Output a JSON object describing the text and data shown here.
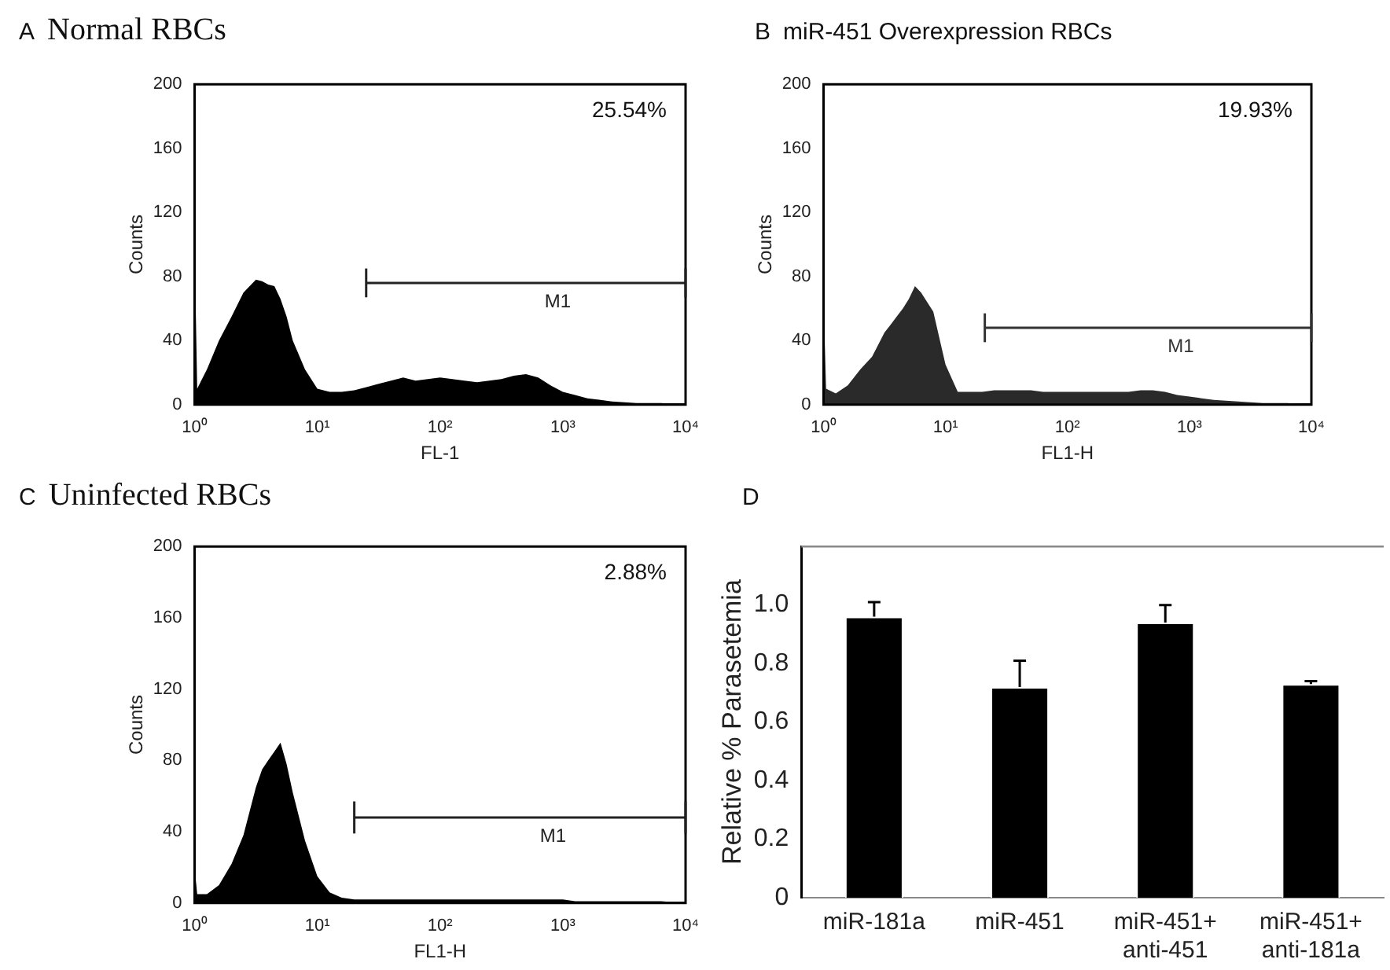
{
  "chart_data": [
    {
      "type": "area",
      "title": "A Normal RBCs",
      "xlabel": "FL-1",
      "ylabel": "Counts",
      "log": "x",
      "series": [
        {
          "type": "area",
          "color": "#000000",
          "x": [
            1,
            1.05,
            1.26,
            1.58,
            2.0,
            2.5,
            3.16,
            3.55,
            3.98,
            4.47,
            5.01,
            5.62,
            6.31,
            7.94,
            10,
            12.6,
            15.8,
            20,
            25.1,
            31.6,
            39.8,
            50.1,
            63.1,
            79.4,
            100,
            126,
            158,
            200,
            251,
            316,
            398,
            501,
            631,
            794,
            1000,
            1259,
            1585,
            2512,
            3981,
            6310,
            10000
          ],
          "values": [
            100,
            10,
            22,
            40,
            55,
            70,
            78,
            77,
            75,
            74,
            66,
            55,
            40,
            22,
            10,
            8,
            8,
            9,
            11,
            13,
            15,
            17,
            15,
            16,
            17,
            16,
            15,
            14,
            15,
            16,
            18,
            19,
            17,
            12,
            8,
            6,
            4,
            2,
            1,
            1,
            0
          ]
        },
        {
          "type": "line",
          "name": "M1",
          "color": "#222222",
          "x": [
            25,
            10000
          ],
          "values": [
            76,
            76
          ],
          "errors": [
            9,
            9
          ]
        }
      ],
      "xlim": [
        1,
        10000
      ],
      "xticks": [
        {
          "value": 1,
          "label": "10⁰"
        },
        {
          "value": 10,
          "label": "10¹"
        },
        {
          "value": 100,
          "label": "10²"
        },
        {
          "value": 1000,
          "label": "10³"
        },
        {
          "value": 10000,
          "label": "10⁴"
        }
      ],
      "ylim": [
        0,
        200
      ],
      "yticks": [
        0,
        40,
        80,
        120,
        160,
        200
      ],
      "annotations": [
        "25.54%"
      ]
    },
    {
      "type": "area",
      "title": "B miR-451 Overexpression RBCs",
      "xlabel": "FL1-H",
      "ylabel": "Counts",
      "log": "x",
      "series": [
        {
          "type": "area",
          "color": "#2a2a2a",
          "x": [
            1,
            1.05,
            1.26,
            1.58,
            2.0,
            2.5,
            3.16,
            3.55,
            3.98,
            4.47,
            5.01,
            5.62,
            6.31,
            7.94,
            10,
            12.6,
            15.8,
            20,
            25.1,
            31.6,
            39.8,
            50.1,
            63.1,
            79.4,
            100,
            126,
            158,
            200,
            251,
            316,
            398,
            501,
            631,
            794,
            1000,
            1259,
            1585,
            2512,
            3981,
            6310,
            10000
          ],
          "values": [
            65,
            10,
            7,
            12,
            22,
            30,
            45,
            50,
            55,
            60,
            66,
            74,
            70,
            58,
            25,
            8,
            8,
            8,
            9,
            9,
            9,
            9,
            8,
            8,
            8,
            8,
            8,
            8,
            8,
            8,
            9,
            9,
            8,
            6,
            5,
            4,
            3,
            2,
            1,
            1,
            0
          ]
        },
        {
          "type": "line",
          "name": "M1",
          "color": "#333333",
          "x": [
            21,
            10000
          ],
          "values": [
            48,
            48
          ],
          "errors": [
            9,
            9
          ]
        }
      ],
      "xlim": [
        1,
        10000
      ],
      "xticks": [
        {
          "value": 1,
          "label": "10⁰"
        },
        {
          "value": 10,
          "label": "10¹"
        },
        {
          "value": 100,
          "label": "10²"
        },
        {
          "value": 1000,
          "label": "10³"
        },
        {
          "value": 10000,
          "label": "10⁴"
        }
      ],
      "ylim": [
        0,
        200
      ],
      "yticks": [
        0,
        40,
        80,
        120,
        160,
        200
      ],
      "annotations": [
        "19.93%"
      ]
    },
    {
      "type": "area",
      "title": "C Uninfected RBCs",
      "xlabel": "FL1-H",
      "ylabel": "Counts",
      "log": "x",
      "series": [
        {
          "type": "area",
          "color": "#000000",
          "x": [
            1,
            1.05,
            1.26,
            1.58,
            2.0,
            2.5,
            3.16,
            3.55,
            3.98,
            4.47,
            5.01,
            5.62,
            6.31,
            7.94,
            10,
            12.6,
            15.8,
            20,
            25.1,
            31.6,
            39.8,
            50.1,
            63.1,
            79.4,
            100,
            126,
            158,
            200,
            251,
            316,
            398,
            501,
            631,
            794,
            1000,
            1259,
            1585,
            2512,
            3981,
            6310,
            10000
          ],
          "values": [
            20,
            5,
            5,
            10,
            22,
            38,
            65,
            75,
            80,
            85,
            90,
            78,
            62,
            35,
            15,
            6,
            3,
            2,
            2,
            2,
            2,
            2,
            2,
            2,
            2,
            2,
            2,
            2,
            2,
            2,
            2,
            2,
            2,
            2,
            2,
            1,
            1,
            1,
            1,
            1,
            0
          ]
        },
        {
          "type": "line",
          "name": "M1",
          "color": "#222222",
          "x": [
            20,
            10000
          ],
          "values": [
            48,
            48
          ],
          "errors": [
            9,
            9
          ]
        }
      ],
      "xlim": [
        1,
        10000
      ],
      "xticks": [
        {
          "value": 1,
          "label": "10⁰"
        },
        {
          "value": 10,
          "label": "10¹"
        },
        {
          "value": 100,
          "label": "10²"
        },
        {
          "value": 1000,
          "label": "10³"
        },
        {
          "value": 10000,
          "label": "10⁴"
        }
      ],
      "ylim": [
        0,
        200
      ],
      "yticks": [
        0,
        40,
        80,
        120,
        160,
        200
      ],
      "annotations": [
        "2.88%"
      ]
    },
    {
      "type": "bar",
      "title": "D",
      "ylabel": "Relative % Parasetemia",
      "color": "#000000",
      "categories": [
        "miR-181a",
        "miR-451",
        "miR-451+ anti-451",
        "miR-451+ anti-181a"
      ],
      "values": [
        0.96,
        0.72,
        0.94,
        0.73
      ],
      "errors": [
        [
          0.96,
          1.01
        ],
        [
          0.72,
          0.81
        ],
        [
          0.94,
          1.0
        ],
        [
          0.73,
          0.74
        ]
      ],
      "ylim": [
        0,
        1.2
      ],
      "yticks": [
        0,
        0.2,
        0.4,
        0.6,
        0.8,
        {
          "value": 1,
          "label": "1.0"
        }
      ]
    }
  ]
}
